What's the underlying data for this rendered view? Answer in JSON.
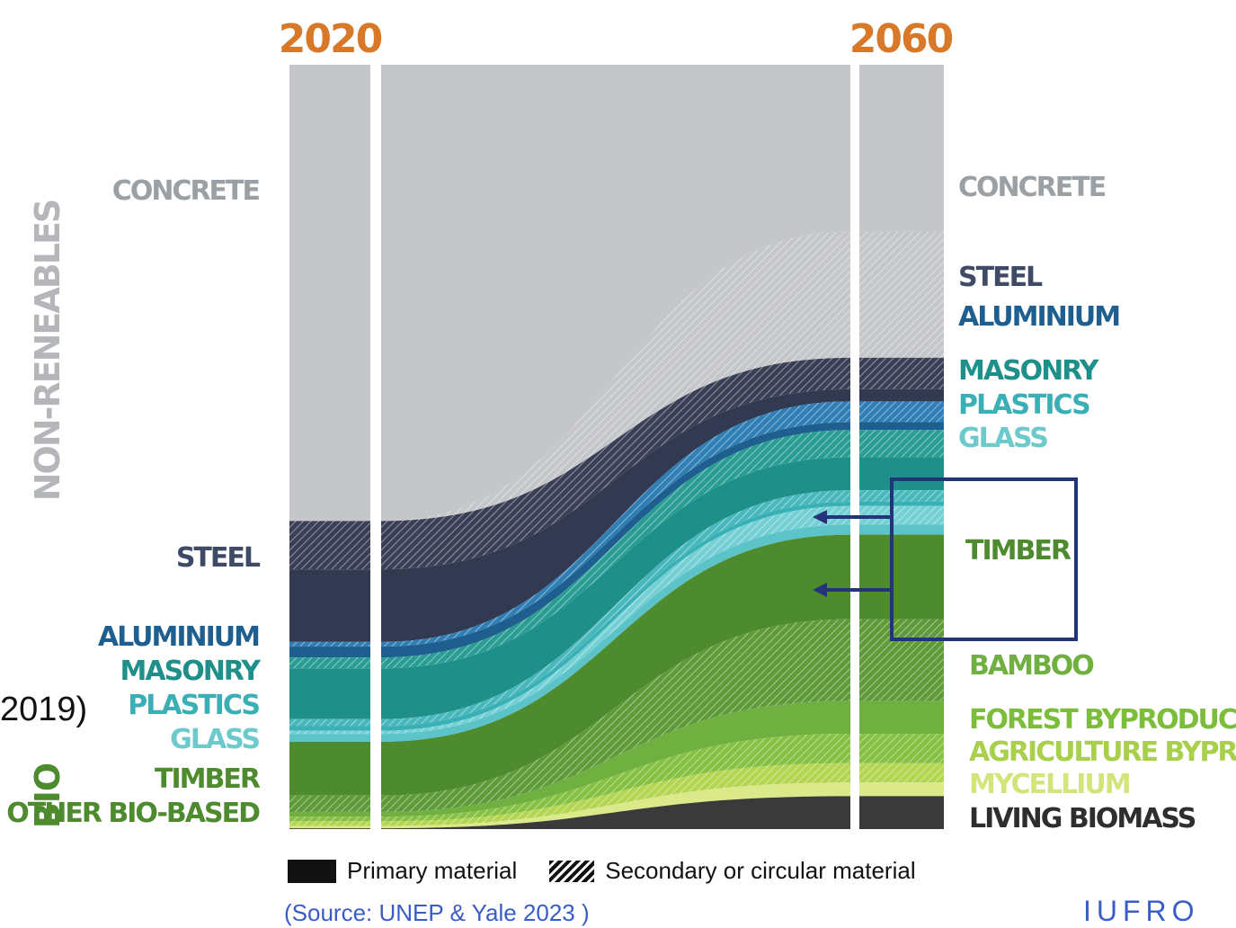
{
  "chart_data": {
    "type": "sankey",
    "title": "",
    "years": [
      "2020",
      "2060"
    ],
    "group_labels": [
      "NON-RENEABLES",
      "BIO"
    ],
    "left_labels": [
      "CONCRETE",
      "STEEL",
      "ALUMINIUM",
      "MASONRY",
      "PLASTICS",
      "GLASS",
      "TIMBER",
      "OTHER BIO-BASED"
    ],
    "right_labels": [
      "CONCRETE",
      "STEEL",
      "ALUMINIUM",
      "MASONRY",
      "PLASTICS",
      "GLASS",
      "TIMBER",
      "BAMBOO",
      "FOREST BYPRODUCT",
      "AGRICULTURE BYPRODUCT",
      "MYCELLIUM",
      "LIVING BIOMASS"
    ],
    "label_colors": {
      "concrete": "#9aa0a4",
      "steel": "#3e4a66",
      "aluminium": "#1f5f8f",
      "masonry": "#1f8f8a",
      "plastics": "#3ab0b6",
      "glass": "#6cc9cc",
      "timber": "#4e8a2e",
      "bamboo": "#6fb040",
      "forest_byproduct": "#7dbd3c",
      "agriculture_byproduct": "#a8d04a",
      "mycellium": "#d2e57a",
      "living_biomass": "#2e2e2e"
    },
    "bands": [
      {
        "name": "CONCRETE",
        "kind": "primary",
        "color": "#c4c6c9",
        "left_share": 58.5,
        "right_share": 23.3
      },
      {
        "name": "CONCRETE",
        "kind": "secondary",
        "color": "#c4c6c9",
        "left_share": 0,
        "right_share": 17.6
      },
      {
        "name": "STEEL",
        "kind": "secondary",
        "color": "#3a3f55",
        "left_share": 6.2,
        "right_share": 4.4
      },
      {
        "name": "STEEL",
        "kind": "primary",
        "color": "#323a52",
        "left_share": 9.3,
        "right_share": 1.7
      },
      {
        "name": "ALUMINIUM",
        "kind": "secondary",
        "color": "#2f7fb5",
        "left_share": 0.6,
        "right_share": 2.9
      },
      {
        "name": "ALUMINIUM",
        "kind": "primary",
        "color": "#1f5f8f",
        "left_share": 1.4,
        "right_share": 1.1
      },
      {
        "name": "MASONRY",
        "kind": "secondary",
        "color": "#2a9d93",
        "left_share": 1.4,
        "right_share": 3.8
      },
      {
        "name": "MASONRY",
        "kind": "primary",
        "color": "#1f8f8a",
        "left_share": 6.5,
        "right_share": 4.6
      },
      {
        "name": "PLASTICS",
        "kind": "secondary",
        "color": "#49b8bc",
        "left_share": 0.9,
        "right_share": 1.6
      },
      {
        "name": "PLASTICS",
        "kind": "primary",
        "color": "#38b0b6",
        "left_share": 0.6,
        "right_share": 0.6
      },
      {
        "name": "GLASS",
        "kind": "secondary",
        "color": "#74d0d4",
        "left_share": 0.4,
        "right_share": 2.6
      },
      {
        "name": "GLASS",
        "kind": "primary",
        "color": "#5cc4c8",
        "left_share": 1.0,
        "right_share": 1.4
      },
      {
        "name": "TIMBER",
        "kind": "primary",
        "color": "#4e8a2e",
        "left_share": 6.9,
        "right_share": 11.8
      },
      {
        "name": "TIMBER",
        "kind": "secondary",
        "color": "#5e9a3a",
        "left_share": 2.1,
        "right_share": 11.4
      },
      {
        "name": "BAMBOO",
        "kind": "primary",
        "color": "#6fb040",
        "left_share": 0.6,
        "right_share": 4.6
      },
      {
        "name": "FOREST BYPRODUCT",
        "kind": "secondary",
        "color": "#86c144",
        "left_share": 0.6,
        "right_share": 4.1
      },
      {
        "name": "AGRICULTURE BYPRODUCT",
        "kind": "secondary",
        "color": "#b3d552",
        "left_share": 0.6,
        "right_share": 2.7
      },
      {
        "name": "MYCELLIUM",
        "kind": "primary",
        "color": "#dbe98a",
        "left_share": 0.3,
        "right_share": 1.9
      },
      {
        "name": "LIVING BIOMASS",
        "kind": "primary",
        "color": "#3a3a3a",
        "left_share": 0.1,
        "right_share": 4.6
      }
    ],
    "legend": {
      "primary": "Primary material",
      "secondary": "Secondary or circular material",
      "position": "bottom"
    }
  },
  "footer": {
    "side_text": "2019)",
    "source": "(Source: UNEP & Yale 2023 )",
    "logo": "IUFRO"
  }
}
